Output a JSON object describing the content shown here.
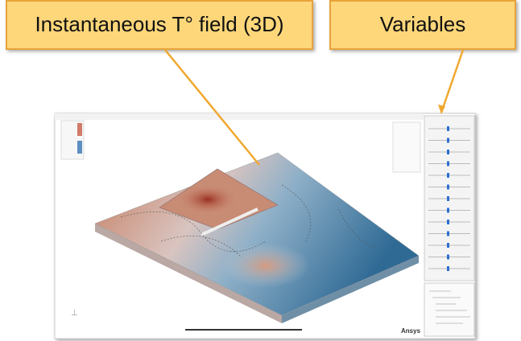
{
  "callouts": {
    "left": "Instantaneous T° field (3D)",
    "right": "Variables"
  },
  "app": {
    "logo": "Ansys"
  }
}
